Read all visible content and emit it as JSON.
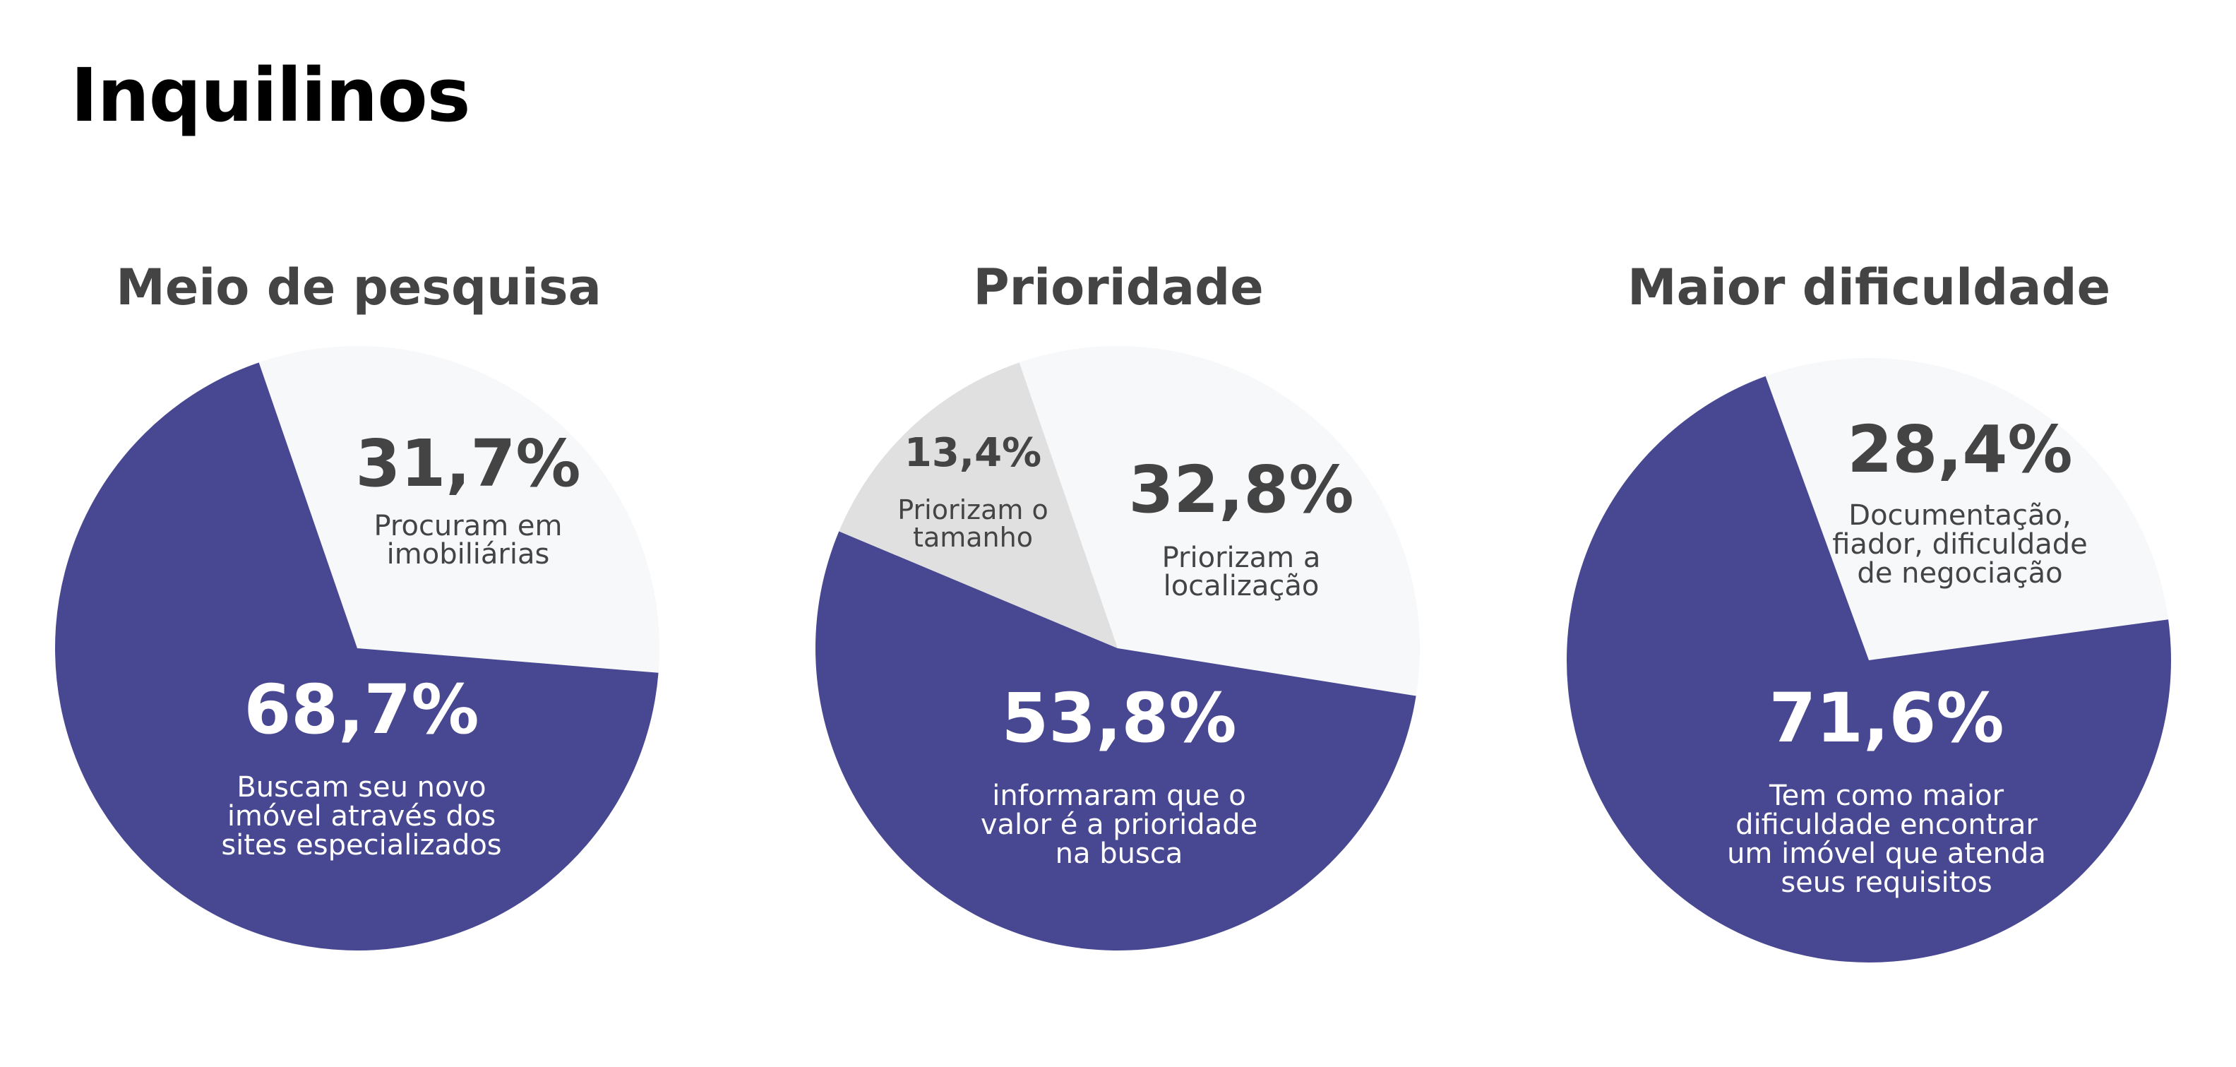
{
  "page": {
    "title": "Inquilinos"
  },
  "chart_data": [
    {
      "type": "pie",
      "title": "Meio de pesquisa",
      "slices": [
        {
          "value": 31.7,
          "label": "31,7%",
          "description": [
            "Procuram em",
            "imobiliárias"
          ],
          "color": "#f7f8fa",
          "text_color": "#444444"
        },
        {
          "value": 68.7,
          "label": "68,7%",
          "description": [
            "Buscam seu novo",
            "imóvel através dos",
            "sites especializados"
          ],
          "color": "#484792",
          "text_color": "#ffffff"
        }
      ]
    },
    {
      "type": "pie",
      "title": "Prioridade",
      "slices": [
        {
          "value": 32.8,
          "label": "32,8%",
          "description": [
            "Priorizam a",
            "localização"
          ],
          "color": "#f7f8fa",
          "text_color": "#444444"
        },
        {
          "value": 53.8,
          "label": "53,8%",
          "description": [
            "informaram que o",
            "valor é a prioridade",
            "na busca"
          ],
          "color": "#484792",
          "text_color": "#ffffff"
        },
        {
          "value": 13.4,
          "label": "13,4%",
          "description": [
            "Priorizam o",
            "tamanho"
          ],
          "color": "#e0e0e0",
          "text_color": "#444444"
        }
      ]
    },
    {
      "type": "pie",
      "title": "Maior dificuldade",
      "slices": [
        {
          "value": 28.4,
          "label": "28,4%",
          "description": [
            "Documentação,",
            "fiador, dificuldade",
            "de negociação"
          ],
          "color": "#f7f8fa",
          "text_color": "#444444"
        },
        {
          "value": 71.6,
          "label": "71,6%",
          "description": [
            "Tem como maior",
            "dificuldade encontrar",
            "um imóvel que atenda",
            "seus requisitos"
          ],
          "color": "#484792",
          "text_color": "#ffffff"
        }
      ]
    }
  ]
}
